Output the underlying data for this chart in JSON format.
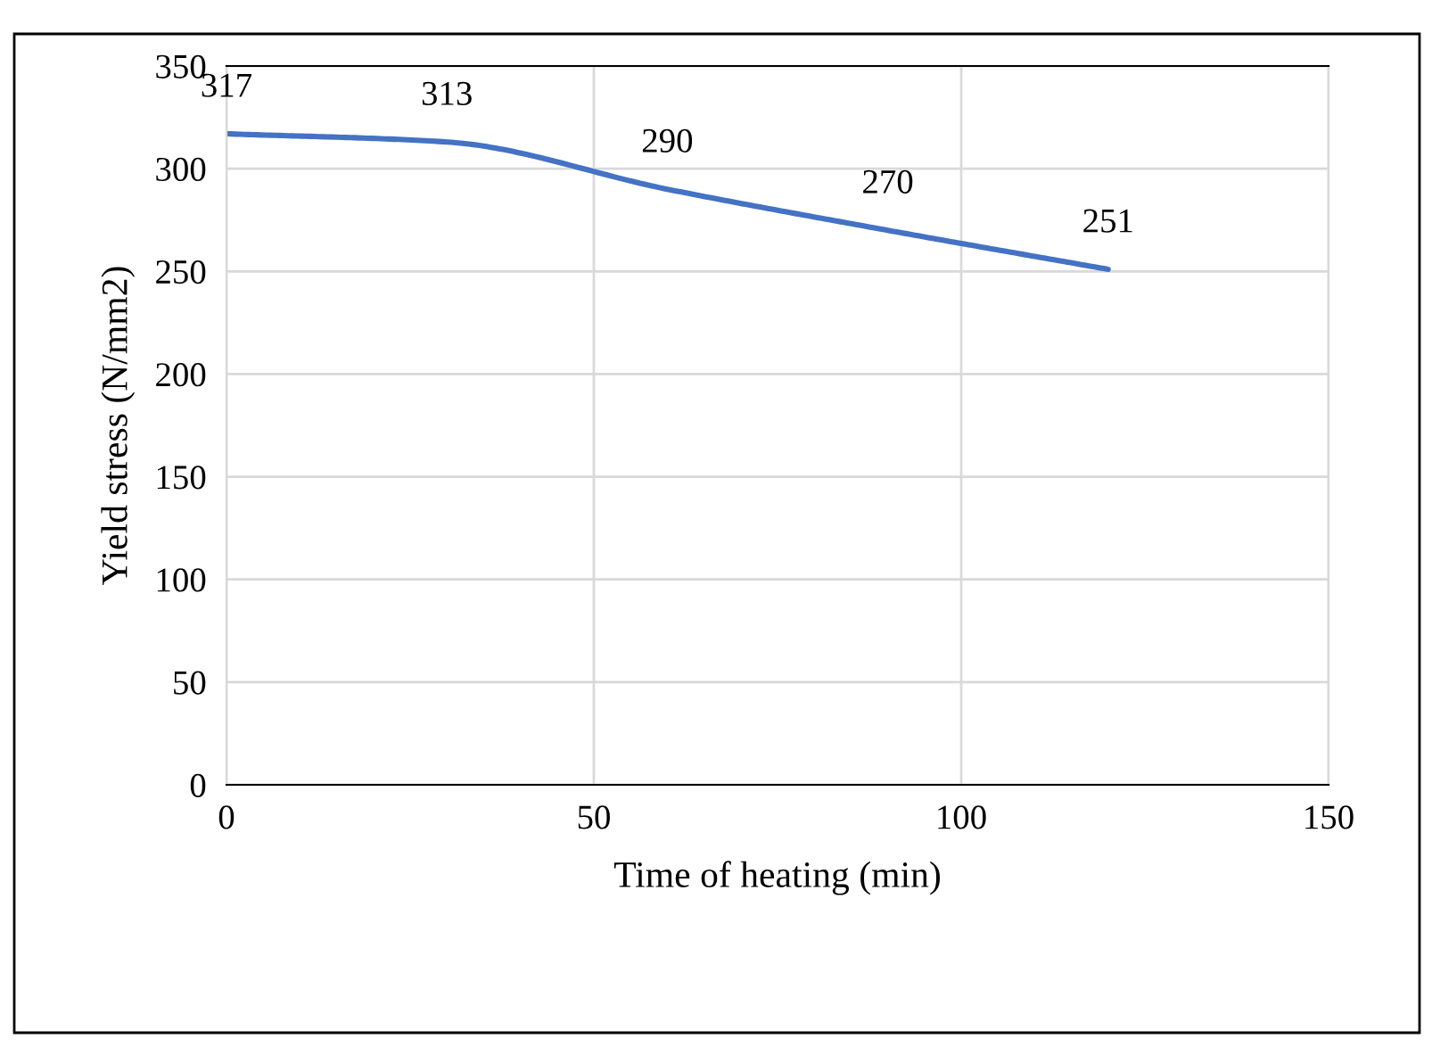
{
  "chart_data": {
    "type": "line",
    "xlabel": "Time of heating (min)",
    "ylabel": "Yield stress (N/mm2)",
    "x": [
      0,
      30,
      60,
      90,
      120
    ],
    "series": [
      {
        "color": "#4472c4",
        "values": [
          317,
          313,
          290,
          270,
          251
        ]
      }
    ],
    "data_labels": true,
    "xlim": [
      0,
      150
    ],
    "ylim": [
      0,
      350
    ],
    "xticks": [
      0,
      50,
      100,
      150
    ],
    "yticks": [
      0,
      50,
      100,
      150,
      200,
      250,
      300,
      350
    ],
    "grid": true,
    "marker": "none",
    "line_style": "solid"
  }
}
